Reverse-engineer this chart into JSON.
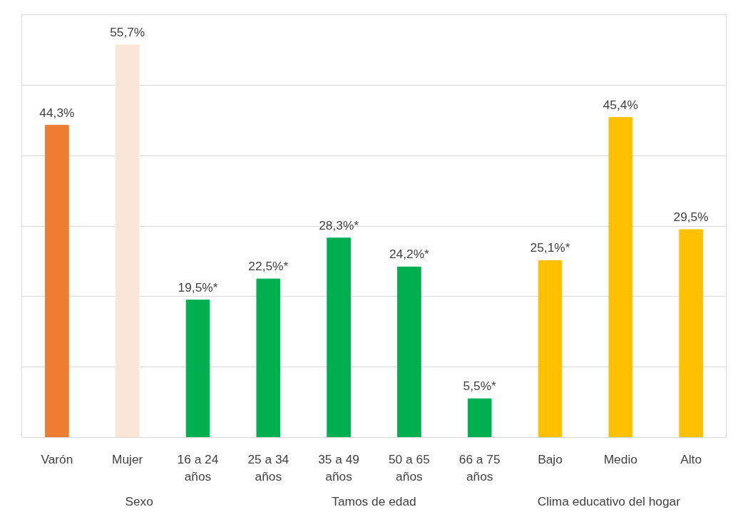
{
  "chart_data": {
    "type": "bar",
    "categories": [
      "Varón",
      "Mujer",
      "16 a 24 años",
      "25 a 34 años",
      "35 a 49 años",
      "50 a 65 años",
      "66 a 75 años",
      "Bajo",
      "Medio",
      "Alto"
    ],
    "values": [
      44.3,
      55.7,
      19.5,
      22.5,
      28.3,
      24.2,
      5.5,
      25.1,
      45.4,
      29.5
    ],
    "value_labels": [
      "44,3%",
      "55,7%",
      "19,5%*",
      "22,5%*",
      "28,3%*",
      "24,2%*",
      "5,5%*",
      "25,1%*",
      "45,4%",
      "29,5%"
    ],
    "colors": [
      "#ed7d31",
      "#fbe5d6",
      "#00b050",
      "#00b050",
      "#00b050",
      "#00b050",
      "#00b050",
      "#ffc000",
      "#ffc000",
      "#ffc000"
    ],
    "ylim": [
      0,
      60
    ],
    "yticks": [
      {
        "value": 0,
        "label": null
      },
      {
        "value": 10,
        "label": null
      },
      {
        "value": 20,
        "label": null
      },
      {
        "value": 30,
        "label": null
      },
      {
        "value": 40,
        "label": null
      },
      {
        "value": 50,
        "label": null
      }
    ],
    "grid": "y",
    "tick_labels": "x",
    "annotations": [
      "Sexo",
      "Tamos de edad",
      "Clima educativo del hogar"
    ]
  }
}
